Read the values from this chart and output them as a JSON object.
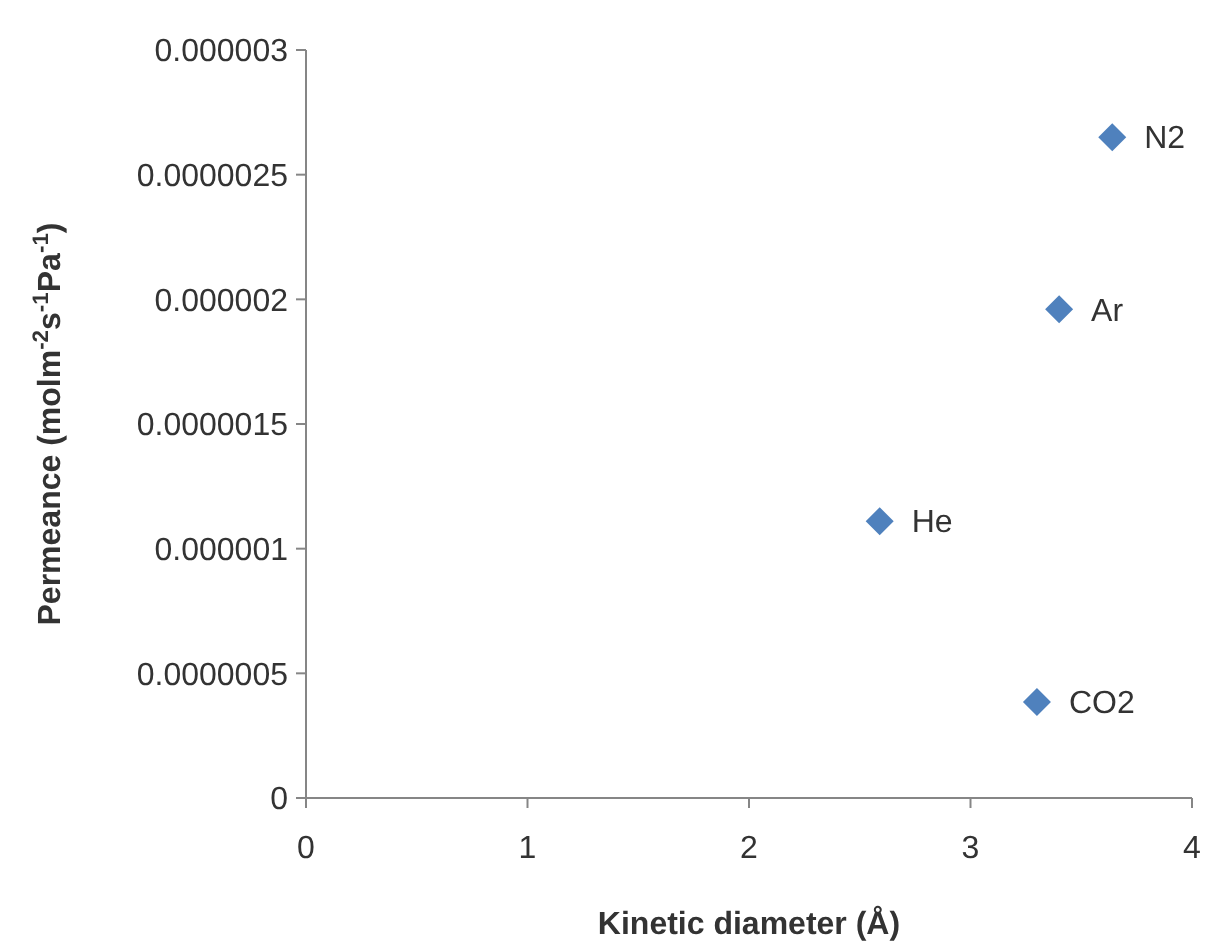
{
  "chart_data": {
    "type": "scatter",
    "xlabel": "Kinetic diameter (Å)",
    "ylabel": "Permeance (molm$^{-2}$s$^{-1}$Pa$^{-1}$)",
    "x": [
      3.64,
      3.4,
      2.59,
      3.3
    ],
    "series": [
      {
        "color": "#4f81bd",
        "values": [
          2.65e-06,
          1.96e-06,
          1.11e-06,
          3.85e-07
        ]
      }
    ],
    "marker": "diamond",
    "grid": false,
    "xlim": [
      0,
      4
    ],
    "xticks": [
      0,
      1,
      2,
      3,
      4
    ],
    "ylim": [
      0,
      3e-06
    ],
    "yticks": [
      0,
      {
        "value": 5e-07,
        "label": "0.0000005"
      },
      {
        "value": 1e-06,
        "label": "0.000001"
      },
      {
        "value": 1.5e-06,
        "label": "0.0000015"
      },
      {
        "value": 2e-06,
        "label": "0.000002"
      },
      {
        "value": 2.5e-06,
        "label": "0.0000025"
      },
      {
        "value": 3e-06,
        "label": "0.000003"
      }
    ],
    "annotations": [
      {
        "text": "N2",
        "x": 3.64,
        "y": 2.65e-06
      },
      {
        "text": "Ar",
        "x": 3.4,
        "y": 1.96e-06
      },
      {
        "text": "He",
        "x": 2.59,
        "y": 1.11e-06
      },
      {
        "text": "CO2",
        "x": 3.3,
        "y": 3.85e-07
      }
    ]
  }
}
